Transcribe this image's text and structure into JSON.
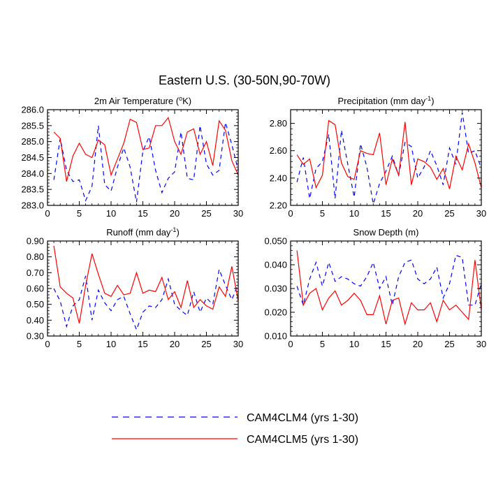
{
  "title": "Eastern U.S. (30-50N,90-70W)",
  "colors": {
    "series1": "#0000ff",
    "series2": "#ff0000",
    "axis": "#000000"
  },
  "legend": [
    {
      "label": "CAM4CLM4 (yrs 1-30)",
      "color": "#0000ff",
      "style": "dashed"
    },
    {
      "label": "CAM4CLM5 (yrs 1-30)",
      "color": "#ff0000",
      "style": "solid"
    }
  ],
  "chart_data": [
    {
      "type": "line",
      "title": "2m Air Temperature (",
      "title_sup": "o",
      "title_tail": "K)",
      "xlabel": "",
      "ylabel": "",
      "xlim": [
        0,
        30
      ],
      "ylim": [
        283.0,
        286.0
      ],
      "xticks": [
        "0",
        "5",
        "10",
        "15",
        "20",
        "25",
        "30"
      ],
      "yticks": [
        "283.0",
        "283.5",
        "284.0",
        "284.5",
        "285.0",
        "285.5",
        "286.0"
      ],
      "x": [
        1,
        2,
        3,
        4,
        5,
        6,
        7,
        8,
        9,
        10,
        11,
        12,
        13,
        14,
        15,
        16,
        17,
        18,
        19,
        20,
        21,
        22,
        23,
        24,
        25,
        26,
        27,
        28,
        29,
        30
      ],
      "series": [
        {
          "name": "CAM4CLM4 (yrs 1-30)",
          "values": [
            283.8,
            285.1,
            284.1,
            283.75,
            283.8,
            283.15,
            283.6,
            285.5,
            283.65,
            283.45,
            284.2,
            284.8,
            284.2,
            283.1,
            284.7,
            285.15,
            284.1,
            283.4,
            283.85,
            284.05,
            285.3,
            283.85,
            283.8,
            285.5,
            284.3,
            283.95,
            284.1,
            285.6,
            284.9,
            284.1
          ]
        },
        {
          "name": "CAM4CLM5 (yrs 1-30)",
          "values": [
            285.3,
            285.1,
            283.75,
            284.55,
            284.95,
            284.6,
            284.5,
            285.05,
            284.9,
            283.95,
            284.45,
            284.95,
            285.7,
            285.6,
            284.75,
            284.8,
            285.5,
            285.5,
            285.75,
            285.0,
            284.6,
            285.3,
            285.4,
            284.6,
            285.0,
            284.25,
            285.65,
            285.35,
            284.4,
            283.95
          ]
        }
      ]
    },
    {
      "type": "line",
      "title": "Precipitation (mm day",
      "title_sup": "-1",
      "title_tail": ")",
      "xlabel": "",
      "ylabel": "",
      "xlim": [
        0,
        30
      ],
      "ylim": [
        2.2,
        2.9
      ],
      "xticks": [
        "0",
        "5",
        "10",
        "15",
        "20",
        "25",
        "30"
      ],
      "yticks": [
        "2.20",
        "2.40",
        "2.60",
        "2.80"
      ],
      "x": [
        1,
        2,
        3,
        4,
        5,
        6,
        7,
        8,
        9,
        10,
        11,
        12,
        13,
        14,
        15,
        16,
        17,
        18,
        19,
        20,
        21,
        22,
        23,
        24,
        25,
        26,
        27,
        28,
        29,
        30
      ],
      "series": [
        {
          "name": "CAM4CLM4 (yrs 1-30)",
          "values": [
            2.37,
            2.55,
            2.25,
            2.47,
            2.52,
            2.72,
            2.25,
            2.75,
            2.5,
            2.26,
            2.65,
            2.48,
            2.21,
            2.36,
            2.45,
            2.56,
            2.42,
            2.66,
            2.63,
            2.4,
            2.48,
            2.6,
            2.49,
            2.35,
            2.62,
            2.5,
            2.88,
            2.58,
            2.6,
            2.47
          ]
        },
        {
          "name": "CAM4CLM5 (yrs 1-30)",
          "values": [
            2.57,
            2.5,
            2.54,
            2.33,
            2.42,
            2.82,
            2.79,
            2.51,
            2.41,
            2.39,
            2.6,
            2.58,
            2.57,
            2.73,
            2.35,
            2.54,
            2.42,
            2.81,
            2.35,
            2.54,
            2.52,
            2.48,
            2.39,
            2.47,
            2.32,
            2.56,
            2.46,
            2.65,
            2.51,
            2.33
          ]
        }
      ]
    },
    {
      "type": "line",
      "title": "Runoff (mm day",
      "title_sup": "-1",
      "title_tail": ")",
      "xlabel": "",
      "ylabel": "",
      "xlim": [
        0,
        30
      ],
      "ylim": [
        0.3,
        0.9
      ],
      "xticks": [
        "0",
        "5",
        "10",
        "15",
        "20",
        "25",
        "30"
      ],
      "yticks": [
        "0.30",
        "0.40",
        "0.50",
        "0.60",
        "0.70",
        "0.80",
        "0.90"
      ],
      "x": [
        1,
        2,
        3,
        4,
        5,
        6,
        7,
        8,
        9,
        10,
        11,
        12,
        13,
        14,
        15,
        16,
        17,
        18,
        19,
        20,
        21,
        22,
        23,
        24,
        25,
        26,
        27,
        28,
        29,
        30
      ],
      "series": [
        {
          "name": "CAM4CLM4 (yrs 1-30)",
          "values": [
            0.6,
            0.52,
            0.36,
            0.49,
            0.53,
            0.68,
            0.4,
            0.59,
            0.51,
            0.46,
            0.53,
            0.55,
            0.44,
            0.34,
            0.45,
            0.49,
            0.48,
            0.53,
            0.66,
            0.5,
            0.46,
            0.43,
            0.58,
            0.45,
            0.54,
            0.5,
            0.72,
            0.62,
            0.53,
            0.63
          ]
        },
        {
          "name": "CAM4CLM5 (yrs 1-30)",
          "values": [
            0.87,
            0.61,
            0.57,
            0.54,
            0.38,
            0.62,
            0.82,
            0.69,
            0.57,
            0.55,
            0.62,
            0.56,
            0.57,
            0.7,
            0.57,
            0.59,
            0.58,
            0.67,
            0.53,
            0.58,
            0.48,
            0.65,
            0.48,
            0.53,
            0.49,
            0.47,
            0.61,
            0.55,
            0.74,
            0.52
          ]
        }
      ]
    },
    {
      "type": "line",
      "title": "Snow Depth (m)",
      "title_sup": "",
      "title_tail": "",
      "xlabel": "",
      "ylabel": "",
      "xlim": [
        0,
        30
      ],
      "ylim": [
        0.01,
        0.05
      ],
      "xticks": [
        "0",
        "5",
        "10",
        "15",
        "20",
        "25",
        "30"
      ],
      "yticks": [
        "0.010",
        "0.020",
        "0.030",
        "0.040",
        "0.050"
      ],
      "x": [
        1,
        2,
        3,
        4,
        5,
        6,
        7,
        8,
        9,
        10,
        11,
        12,
        13,
        14,
        15,
        16,
        17,
        18,
        19,
        20,
        21,
        22,
        23,
        24,
        25,
        26,
        27,
        28,
        29,
        30
      ],
      "series": [
        {
          "name": "CAM4CLM4 (yrs 1-30)",
          "values": [
            0.031,
            0.023,
            0.034,
            0.041,
            0.031,
            0.041,
            0.033,
            0.035,
            0.034,
            0.032,
            0.031,
            0.035,
            0.041,
            0.03,
            0.035,
            0.023,
            0.035,
            0.041,
            0.042,
            0.034,
            0.032,
            0.034,
            0.039,
            0.026,
            0.032,
            0.044,
            0.043,
            0.023,
            0.023,
            0.032
          ]
        },
        {
          "name": "CAM4CLM5 (yrs 1-30)",
          "values": [
            0.046,
            0.023,
            0.028,
            0.03,
            0.021,
            0.026,
            0.029,
            0.023,
            0.025,
            0.028,
            0.025,
            0.019,
            0.019,
            0.027,
            0.015,
            0.025,
            0.026,
            0.015,
            0.024,
            0.021,
            0.021,
            0.024,
            0.016,
            0.025,
            0.021,
            0.023,
            0.02,
            0.017,
            0.042,
            0.021
          ]
        }
      ]
    }
  ]
}
